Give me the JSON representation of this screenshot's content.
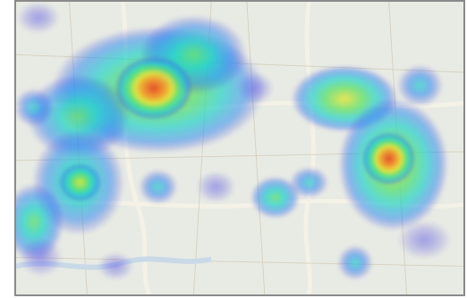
{
  "map": {
    "view": "heatmap-overlay",
    "basemap_colors": {
      "land": "#e8ebe4",
      "roads": "#f4f1e6",
      "minor_roads": "#d7d2c2",
      "water": "#c9d9e8"
    },
    "heat_scale": [
      "#3b35d8",
      "#2f8cf0",
      "#22d3c8",
      "#63e06a",
      "#e8e43a",
      "#f39a2c",
      "#e5452b"
    ],
    "hotspot_levels": [
      {
        "intensity": 1.0
      },
      {
        "intensity": 0.95
      },
      {
        "intensity": 0.7
      },
      {
        "intensity": 0.65
      },
      {
        "intensity": 0.5
      },
      {
        "intensity": 0.45
      },
      {
        "intensity": 0.4
      },
      {
        "intensity": 0.4
      },
      {
        "intensity": 0.35
      },
      {
        "intensity": 0.3
      },
      {
        "intensity": 0.25
      },
      {
        "intensity": 0.25
      },
      {
        "intensity": 0.2
      }
    ]
  }
}
